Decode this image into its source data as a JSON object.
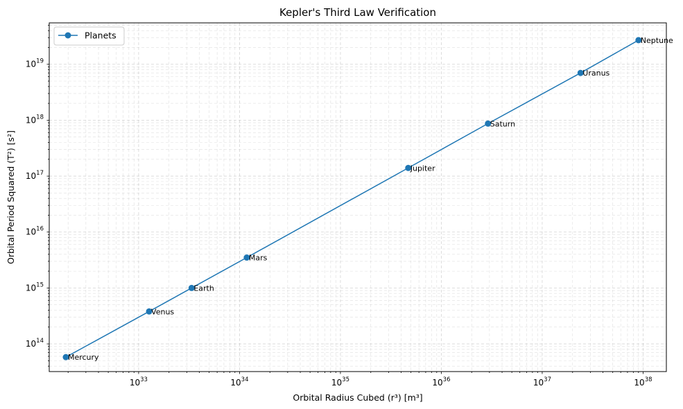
{
  "chart_data": {
    "type": "line",
    "title": "Kepler's Third Law Verification",
    "xlabel": "Orbital Radius Cubed (r³) [m³]",
    "ylabel": "Orbital Period Squared (T²) [s²]",
    "x_scale": "log",
    "y_scale": "log",
    "xlim": [
      1.3e+32,
      1.7e+38
    ],
    "ylim": [
      32000000000000.0,
      5.5e+19
    ],
    "x_ticks": [
      {
        "value": 1e+33,
        "base": "10",
        "exp": "33"
      },
      {
        "value": 1e+34,
        "base": "10",
        "exp": "34"
      },
      {
        "value": 1e+35,
        "base": "10",
        "exp": "35"
      },
      {
        "value": 1e+36,
        "base": "10",
        "exp": "36"
      },
      {
        "value": 1e+37,
        "base": "10",
        "exp": "37"
      },
      {
        "value": 1e+38,
        "base": "10",
        "exp": "38"
      }
    ],
    "y_ticks": [
      {
        "value": 100000000000000.0,
        "base": "10",
        "exp": "14"
      },
      {
        "value": 1000000000000000.0,
        "base": "10",
        "exp": "15"
      },
      {
        "value": 1e+16,
        "base": "10",
        "exp": "16"
      },
      {
        "value": 1e+17,
        "base": "10",
        "exp": "17"
      },
      {
        "value": 1e+18,
        "base": "10",
        "exp": "18"
      },
      {
        "value": 1e+19,
        "base": "10",
        "exp": "19"
      }
    ],
    "grid": true,
    "legend": {
      "position": "top-left",
      "entries": [
        "Planets"
      ]
    },
    "series": [
      {
        "name": "Planets",
        "color": "#1f77b4",
        "marker": "circle",
        "points": [
          {
            "label": "Mercury",
            "x": 1.9e+32,
            "y": 58000000000000.0
          },
          {
            "label": "Venus",
            "x": 1.27e+33,
            "y": 380000000000000.0
          },
          {
            "label": "Earth",
            "x": 3.35e+33,
            "y": 1000000000000000.0
          },
          {
            "label": "Mars",
            "x": 1.18e+34,
            "y": 3500000000000000.0
          },
          {
            "label": "Jupiter",
            "x": 4.7e+35,
            "y": 1.4e+17
          },
          {
            "label": "Saturn",
            "x": 2.9e+36,
            "y": 8.7e+17
          },
          {
            "label": "Uranus",
            "x": 2.4e+37,
            "y": 7e+18
          },
          {
            "label": "Neptune",
            "x": 9e+37,
            "y": 2.7e+19
          }
        ]
      }
    ]
  }
}
